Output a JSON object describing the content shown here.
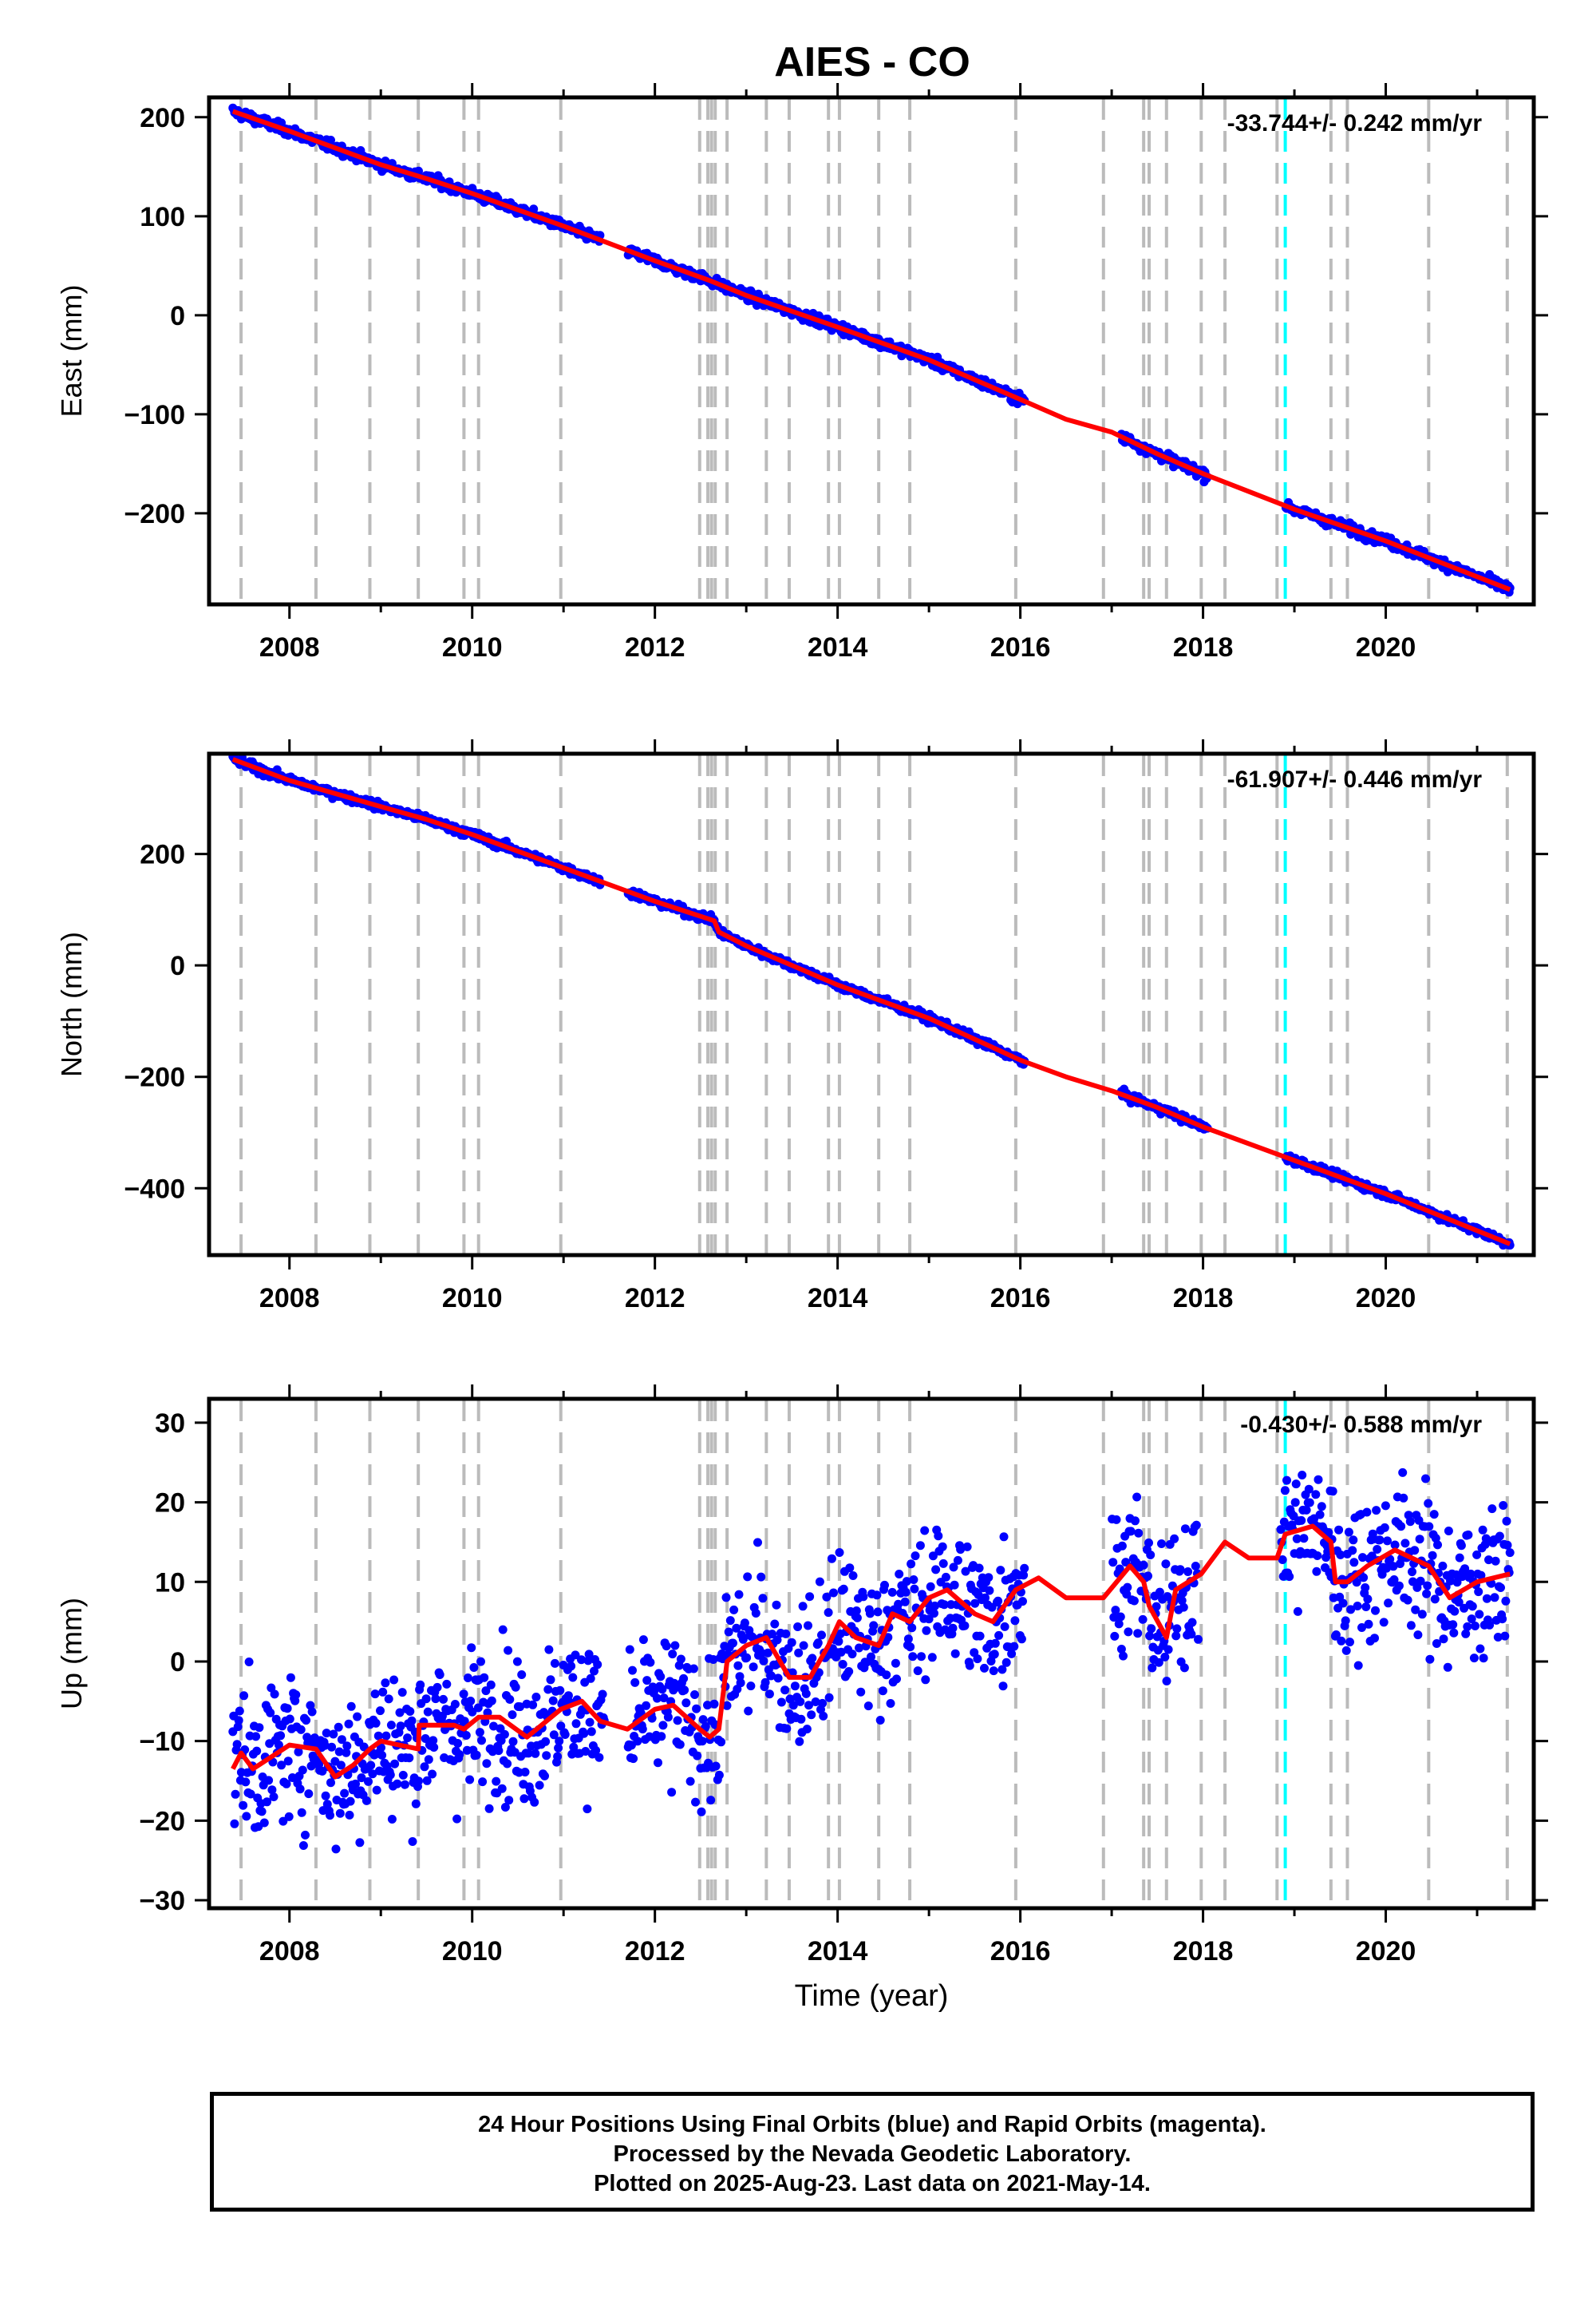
{
  "chart_data": {
    "type": "scatter",
    "title": "AIES - CO",
    "xlabel": "Time (year)",
    "x_ticks": [
      "2008",
      "2010",
      "2012",
      "2014",
      "2016",
      "2018",
      "2020"
    ],
    "xlim": [
      2007.12,
      2021.62
    ],
    "dashed_vertical_lines_gray": [
      2007.47,
      2008.29,
      2008.88,
      2009.41,
      2009.91,
      2010.07,
      2010.97,
      2012.49,
      2012.58,
      2012.62,
      2012.66,
      2012.79,
      2013.22,
      2013.47,
      2013.9,
      2014.02,
      2014.45,
      2014.79,
      2015.95,
      2016.91,
      2017.35,
      2017.41,
      2017.6,
      2017.98,
      2018.24,
      2018.81,
      2019.4,
      2019.58,
      2020.47,
      2021.33
    ],
    "dashed_vertical_lines_cyan": [
      2018.9
    ],
    "series_styles": {
      "observations": "#0000ff",
      "model": "#ff0000",
      "offsets": "#bbbbbb",
      "cyan_line": "#00ffff"
    },
    "panels": [
      {
        "name": "east",
        "ylabel": "East (mm)",
        "ylim": [
          -292,
          220
        ],
        "y_ticks": [
          200,
          100,
          0,
          -100,
          -200
        ],
        "y_tick_labels": [
          "200",
          "100",
          "0",
          "−100",
          "−200"
        ],
        "rate_text": "-33.744+/- 0.242 mm/yr",
        "model": {
          "x": [
            2007.38,
            2008.0,
            2009.0,
            2009.5,
            2010.0,
            2011.0,
            2012.0,
            2012.6,
            2013.0,
            2014.0,
            2015.0,
            2016.0,
            2016.5,
            2017.0,
            2017.5,
            2018.0,
            2018.5,
            2019.0,
            2020.0,
            2021.36
          ],
          "y": [
            206,
            186,
            152,
            138,
            123,
            90,
            55,
            35,
            20,
            -12,
            -45,
            -85,
            -105,
            -118,
            -140,
            -160,
            -178,
            -196,
            -228,
            -277
          ]
        },
        "data_gaps": [
          [
            2011.4,
            2011.7
          ],
          [
            2016.05,
            2017.1
          ],
          [
            2018.05,
            2018.9
          ]
        ],
        "scatter_sd": 2.5
      },
      {
        "name": "north",
        "ylabel": "North (mm)",
        "ylim": [
          -520,
          380
        ],
        "y_ticks": [
          200,
          0,
          -200,
          -400
        ],
        "y_tick_labels": [
          "200",
          "0",
          "−200",
          "−400"
        ],
        "rate_text": "-61.907+/- 0.446 mm/yr",
        "model": {
          "x": [
            2007.38,
            2008.0,
            2009.0,
            2009.5,
            2010.0,
            2011.0,
            2012.0,
            2012.65,
            2012.7,
            2013.0,
            2014.0,
            2015.0,
            2016.0,
            2016.5,
            2017.0,
            2017.5,
            2018.0,
            2018.5,
            2019.0,
            2020.0,
            2021.36
          ],
          "y": [
            370,
            332,
            285,
            262,
            235,
            175,
            115,
            80,
            60,
            35,
            -35,
            -95,
            -170,
            -200,
            -225,
            -255,
            -290,
            -320,
            -350,
            -410,
            -500
          ]
        },
        "data_gaps": [
          [
            2011.4,
            2011.7
          ],
          [
            2016.05,
            2017.1
          ],
          [
            2018.05,
            2018.9
          ]
        ],
        "scatter_sd": 3.5
      },
      {
        "name": "up",
        "ylabel": "Up (mm)",
        "ylim": [
          -31,
          33
        ],
        "y_ticks": [
          30,
          20,
          10,
          0,
          -10,
          -20,
          -30
        ],
        "y_tick_labels": [
          "30",
          "20",
          "10",
          "0",
          "−10",
          "−20",
          "−30"
        ],
        "rate_text": "-0.430+/- 0.588 mm/yr",
        "model": {
          "x": [
            2007.38,
            2007.47,
            2007.6,
            2007.8,
            2008.0,
            2008.29,
            2008.5,
            2008.7,
            2008.88,
            2009.0,
            2009.2,
            2009.41,
            2009.42,
            2009.6,
            2009.8,
            2009.91,
            2010.07,
            2010.3,
            2010.6,
            2010.97,
            2011.2,
            2011.4,
            2011.7,
            2012.0,
            2012.2,
            2012.49,
            2012.6,
            2012.7,
            2012.79,
            2013.0,
            2013.22,
            2013.47,
            2013.7,
            2013.9,
            2014.02,
            2014.2,
            2014.45,
            2014.6,
            2014.79,
            2015.0,
            2015.2,
            2015.5,
            2015.7,
            2015.95,
            2016.2,
            2016.5,
            2016.91,
            2017.2,
            2017.35,
            2017.41,
            2017.6,
            2017.7,
            2017.98,
            2018.24,
            2018.5,
            2018.81,
            2018.9,
            2019.2,
            2019.4,
            2019.45,
            2019.58,
            2019.8,
            2020.1,
            2020.47,
            2020.7,
            2021.0,
            2021.36
          ],
          "y": [
            -13.5,
            -11.5,
            -13.5,
            -12,
            -10.5,
            -11,
            -14.5,
            -13,
            -11,
            -10,
            -10.5,
            -11,
            -8,
            -8,
            -8,
            -8.5,
            -7,
            -7,
            -9.5,
            -6,
            -5,
            -7.5,
            -8.5,
            -6,
            -5.5,
            -8.5,
            -9.5,
            -8.5,
            0,
            2,
            3,
            -2,
            -2,
            2,
            5,
            3,
            2,
            6,
            5,
            8,
            9,
            6,
            5,
            9,
            10.5,
            8,
            8,
            12,
            10,
            7,
            3,
            9,
            11,
            15,
            13,
            13,
            16,
            17,
            15,
            10,
            10,
            12,
            14,
            12,
            8,
            10,
            11
          ]
        },
        "data_gaps": [
          [
            2011.45,
            2011.7
          ],
          [
            2016.05,
            2017.0
          ],
          [
            2017.95,
            2018.85
          ]
        ],
        "scatter_sd": 4.5
      }
    ]
  },
  "footer": {
    "line1": "24 Hour Positions Using Final Orbits (blue) and Rapid Orbits (magenta).",
    "line2": "Processed by the Nevada Geodetic Laboratory.",
    "line3": "Plotted on 2025-Aug-23. Last data on 2021-May-14."
  }
}
